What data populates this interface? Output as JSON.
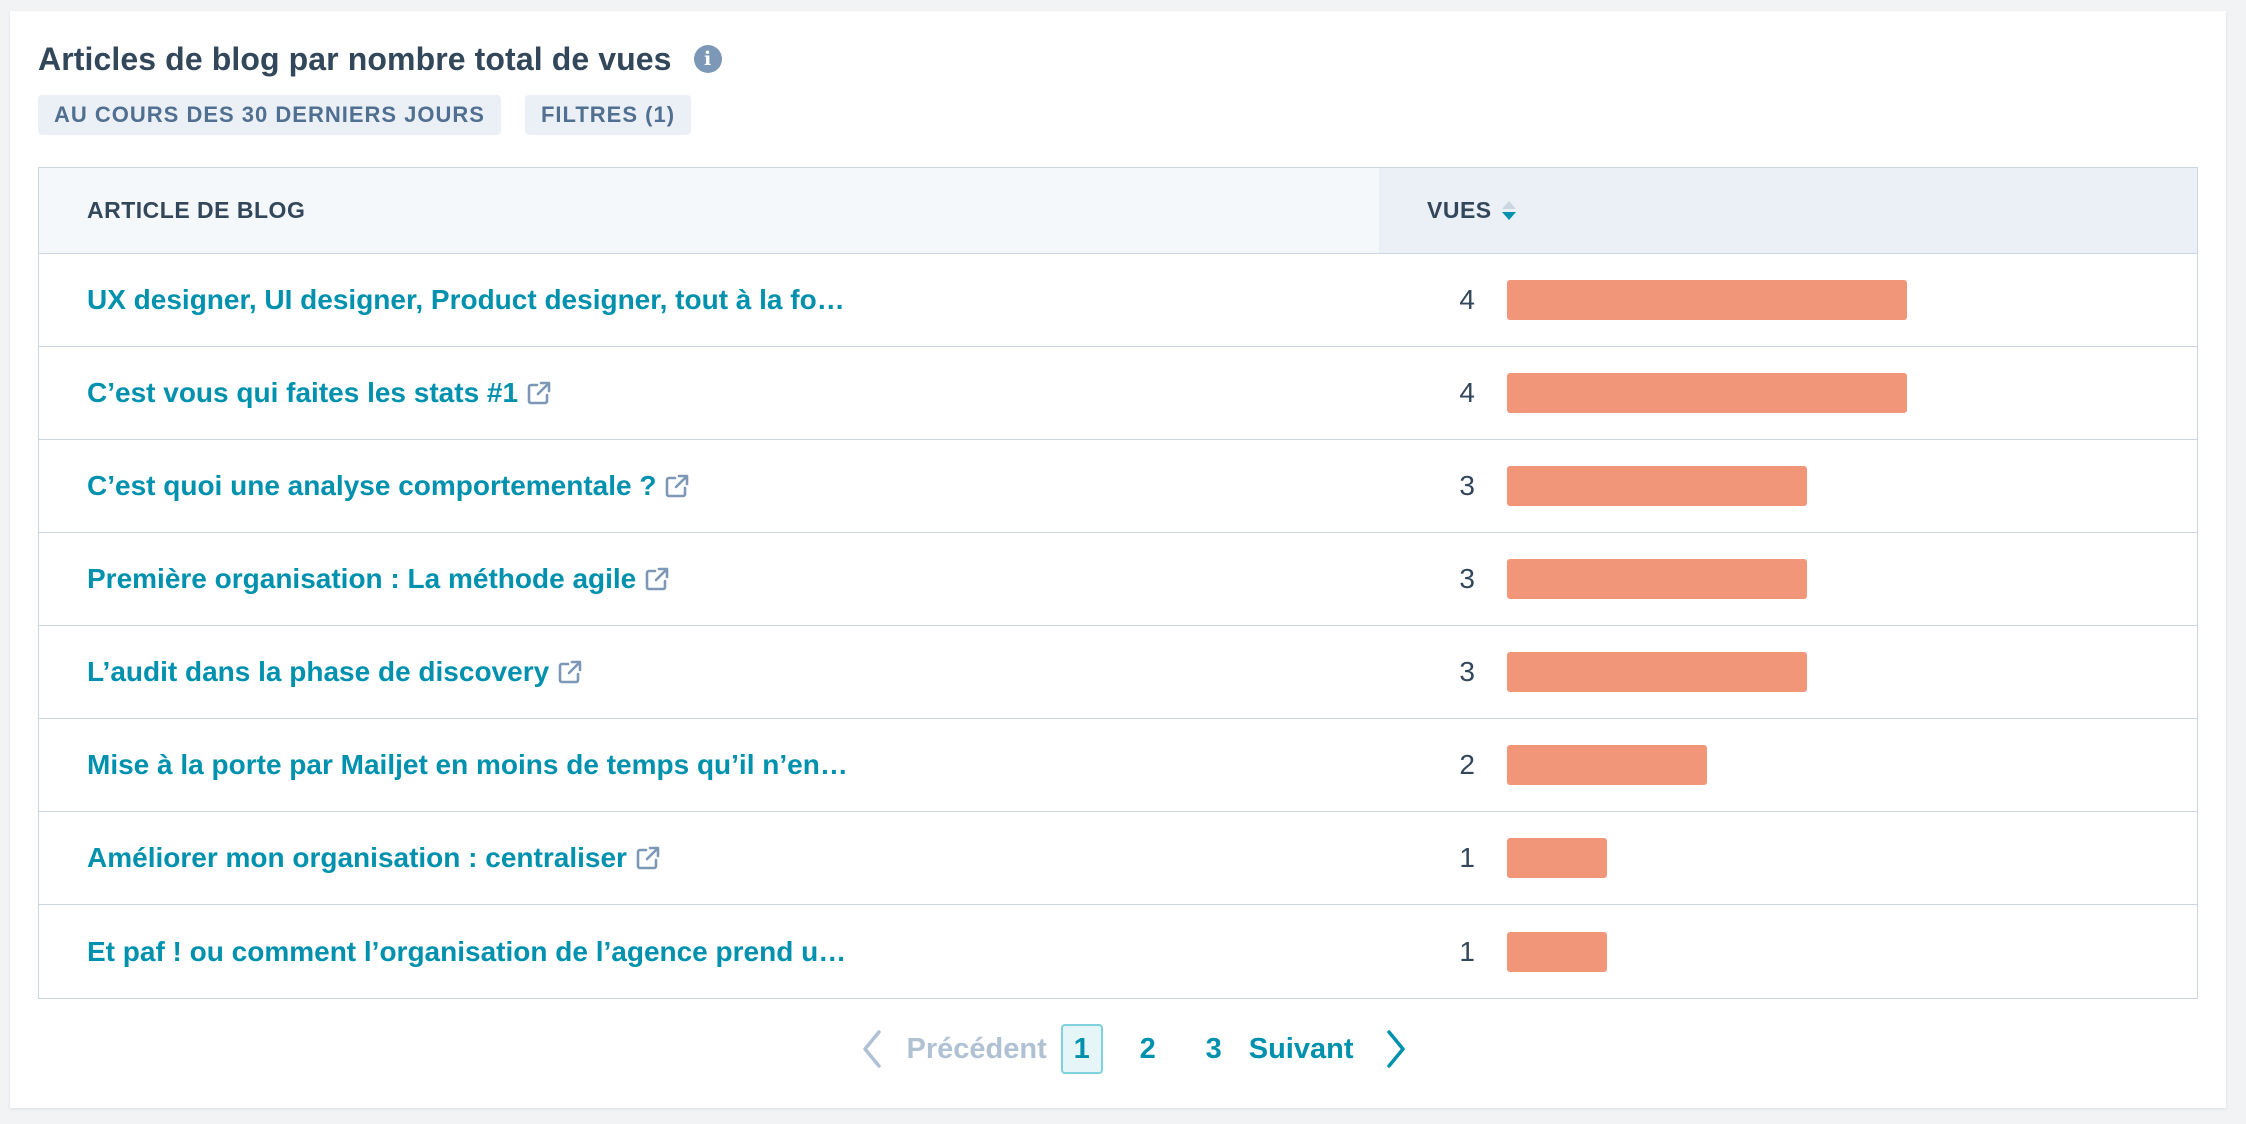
{
  "header": {
    "title": "Articles de blog par nombre total de vues",
    "info_icon": "info-icon",
    "chips": {
      "date_range": "AU COURS DES 30 DERNIERS JOURS",
      "filters": "FILTRES (1)"
    }
  },
  "table": {
    "columns": {
      "article": "ARTICLE DE BLOG",
      "views": "VUES"
    },
    "sort": "descending",
    "max_views": 4,
    "bar_color": "#f2967a",
    "link_color": "#0091ae",
    "rows": [
      {
        "title": "UX designer, UI designer, Product designer, tout à la fo…",
        "external": false,
        "views": 4
      },
      {
        "title": "C’est vous qui faites les stats #1",
        "external": true,
        "views": 4
      },
      {
        "title": "C’est quoi une analyse comportementale ?",
        "external": true,
        "views": 3
      },
      {
        "title": "Première organisation : La méthode agile",
        "external": true,
        "views": 3
      },
      {
        "title": "L’audit dans la phase de discovery",
        "external": true,
        "views": 3
      },
      {
        "title": "Mise à la porte par Mailjet en moins de temps qu’il n’en…",
        "external": false,
        "views": 2
      },
      {
        "title": "Améliorer mon organisation : centraliser",
        "external": true,
        "views": 1
      },
      {
        "title": "Et paf ! ou comment l’organisation de l’agence prend u…",
        "external": false,
        "views": 1
      }
    ]
  },
  "pagination": {
    "previous_label": "Précédent",
    "next_label": "Suivant",
    "pages": [
      "1",
      "2",
      "3"
    ],
    "current": "1"
  }
}
